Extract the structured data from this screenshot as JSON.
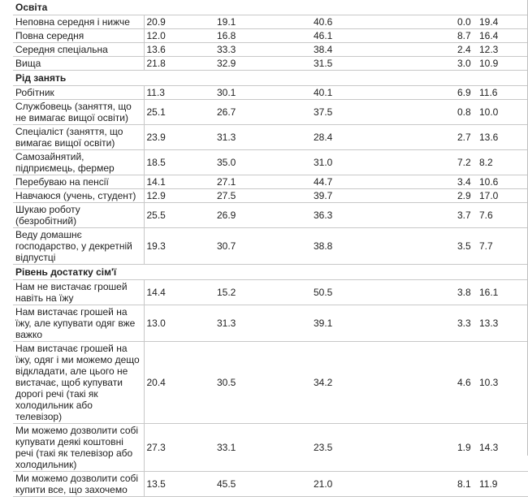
{
  "sections": [
    {
      "title": "Освіта",
      "rows": [
        {
          "label": "Неповна середня і нижче",
          "values": [
            "20.9",
            "19.1",
            "40.6",
            "0.0",
            "19.4"
          ]
        },
        {
          "label": "Повна середня",
          "values": [
            "12.0",
            "16.8",
            "46.1",
            "8.7",
            "16.4"
          ]
        },
        {
          "label": "Середня спеціальна",
          "values": [
            "13.6",
            "33.3",
            "38.4",
            "2.4",
            "12.3"
          ]
        },
        {
          "label": "Вища",
          "values": [
            "21.8",
            "32.9",
            "31.5",
            "3.0",
            "10.9"
          ]
        }
      ]
    },
    {
      "title": "Рід занять",
      "rows": [
        {
          "label": "Робітник",
          "values": [
            "11.3",
            "30.1",
            "40.1",
            "6.9",
            "11.6"
          ]
        },
        {
          "label": "Службовець (заняття, що не вимагає вищої освіти)",
          "values": [
            "25.1",
            "26.7",
            "37.5",
            "0.8",
            "10.0"
          ]
        },
        {
          "label": "Спеціаліст (заняття, що вимагає вищої освіти)",
          "values": [
            "23.9",
            "31.3",
            "28.4",
            "2.7",
            "13.6"
          ]
        },
        {
          "label": "Самозайнятий, підприємець, фермер",
          "values": [
            "18.5",
            "35.0",
            "31.0",
            "7.2",
            "8.2"
          ]
        },
        {
          "label": "Перебуваю на пенсії",
          "values": [
            "14.1",
            "27.1",
            "44.7",
            "3.4",
            "10.6"
          ]
        },
        {
          "label": "Навчаюся (учень, студент)",
          "values": [
            "12.9",
            "27.5",
            "39.7",
            "2.9",
            "17.0"
          ]
        },
        {
          "label": "Шукаю роботу (безробітний)",
          "values": [
            "25.5",
            "26.9",
            "36.3",
            "3.7",
            "7.6"
          ]
        },
        {
          "label": "Веду домашнє господарство, у декретній відпустці",
          "values": [
            "19.3",
            "30.7",
            "38.8",
            "3.5",
            "7.7"
          ]
        }
      ]
    },
    {
      "title": "Рівень достатку сім'ї",
      "rows": [
        {
          "label": "Нам не вистачає грошей навіть на їжу",
          "values": [
            "14.4",
            "15.2",
            "50.5",
            "3.8",
            "16.1"
          ]
        },
        {
          "label": "Нам вистачає грошей на їжу, але купувати одяг вже важко",
          "values": [
            "13.0",
            "31.3",
            "39.1",
            "3.3",
            "13.3"
          ]
        },
        {
          "label": "Нам вистачає грошей на їжу, одяг і ми можемо дещо відкладати, але цього не вистачає, щоб купувати дорогі речі (такі як холодильник або телевізор)",
          "values": [
            "20.4",
            "30.5",
            "34.2",
            "4.6",
            "10.3"
          ]
        },
        {
          "label": "Ми можемо дозволити собі купувати деякі коштовні речі (такі як телевізор або холодильник)",
          "values": [
            "27.3",
            "33.1",
            "23.5",
            "1.9",
            "14.3"
          ]
        },
        {
          "label": "Ми можемо дозволити собі купити все, що захочемо",
          "values": [
            "13.5",
            "45.5",
            "21.0",
            "8.1",
            "11.9"
          ]
        }
      ]
    }
  ]
}
